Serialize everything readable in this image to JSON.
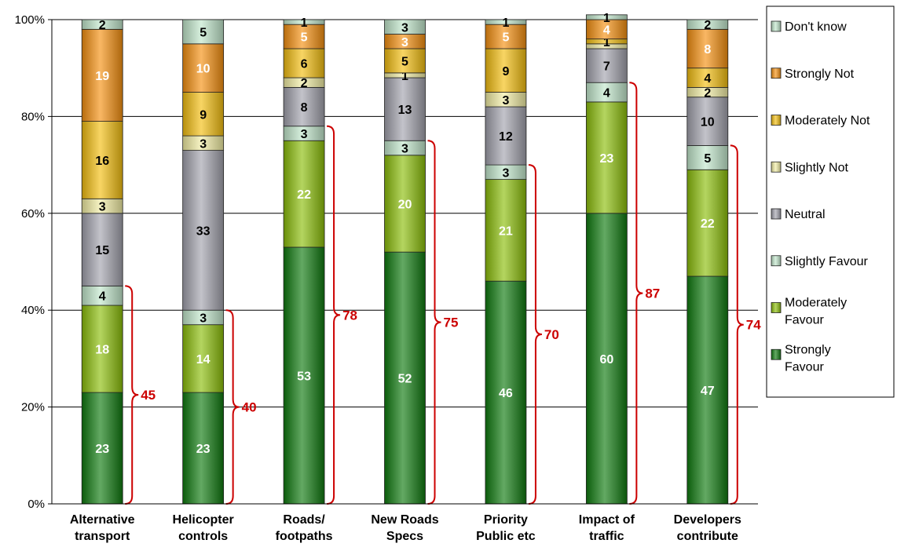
{
  "chart_data": {
    "type": "bar",
    "stacked": true,
    "categories": [
      [
        "Alternative",
        "transport"
      ],
      [
        "Helicopter",
        "controls"
      ],
      [
        "Roads/",
        "footpaths"
      ],
      [
        "New Roads",
        "Specs"
      ],
      [
        "Priority",
        "Public etc"
      ],
      [
        "Impact of",
        "traffic"
      ],
      [
        "Developers",
        "contribute"
      ]
    ],
    "yticks": [
      "0%",
      "20%",
      "40%",
      "60%",
      "80%",
      "100%"
    ],
    "ylim": [
      0,
      100
    ],
    "grid": true,
    "legend_position": "right",
    "series": [
      {
        "key": "sf",
        "name": [
          "Strongly",
          "Favour"
        ],
        "color": "#0f7a0f",
        "label_color": "#ffffff",
        "values": [
          23,
          23,
          53,
          52,
          46,
          60,
          47
        ]
      },
      {
        "key": "mf",
        "name": [
          "Moderately",
          "Favour"
        ],
        "color": "#8cbf0a",
        "label_color": "#ffffff",
        "values": [
          18,
          14,
          22,
          20,
          21,
          23,
          22
        ]
      },
      {
        "key": "slf",
        "name": [
          "Slightly Favour"
        ],
        "color": "#c2e8cc",
        "label_color": "#000000",
        "values": [
          4,
          3,
          3,
          3,
          3,
          4,
          5
        ]
      },
      {
        "key": "neu",
        "name": [
          "Neutral"
        ],
        "color": "#a3a3ad",
        "label_color": "#000000",
        "values": [
          15,
          33,
          8,
          13,
          12,
          7,
          10
        ]
      },
      {
        "key": "sln",
        "name": [
          "Slightly Not"
        ],
        "color": "#f3eea4",
        "label_color": "#000000",
        "values": [
          3,
          3,
          2,
          1,
          3,
          1,
          2
        ]
      },
      {
        "key": "mn",
        "name": [
          "Moderately Not"
        ],
        "color": "#f4bf10",
        "label_color": "#000000",
        "values": [
          16,
          9,
          6,
          5,
          9,
          1,
          4
        ]
      },
      {
        "key": "stn",
        "name": [
          "Strongly Not"
        ],
        "color": "#f59010",
        "label_color": "#ffffff",
        "values": [
          19,
          10,
          5,
          3,
          5,
          4,
          8
        ]
      },
      {
        "key": "dk",
        "name": [
          "Don't know"
        ],
        "color": "#c2e8cc",
        "label_color": "#000000",
        "values": [
          2,
          5,
          1,
          3,
          1,
          1,
          2
        ]
      }
    ],
    "shown_labels": {
      "sf": [
        true,
        true,
        true,
        true,
        true,
        true,
        true
      ],
      "mf": [
        true,
        true,
        true,
        true,
        true,
        true,
        true
      ],
      "slf": [
        true,
        true,
        true,
        true,
        true,
        true,
        true
      ],
      "neu": [
        true,
        true,
        true,
        true,
        true,
        true,
        true
      ],
      "sln": [
        true,
        true,
        true,
        true,
        true,
        false,
        true
      ],
      "mn": [
        true,
        true,
        true,
        true,
        true,
        true,
        true
      ],
      "stn": [
        true,
        true,
        true,
        true,
        true,
        true,
        true
      ],
      "dk": [
        true,
        true,
        true,
        true,
        true,
        true,
        true
      ]
    },
    "favour_totals": [
      45,
      40,
      78,
      75,
      70,
      87,
      74
    ],
    "bracket_color": "#cc0000"
  }
}
